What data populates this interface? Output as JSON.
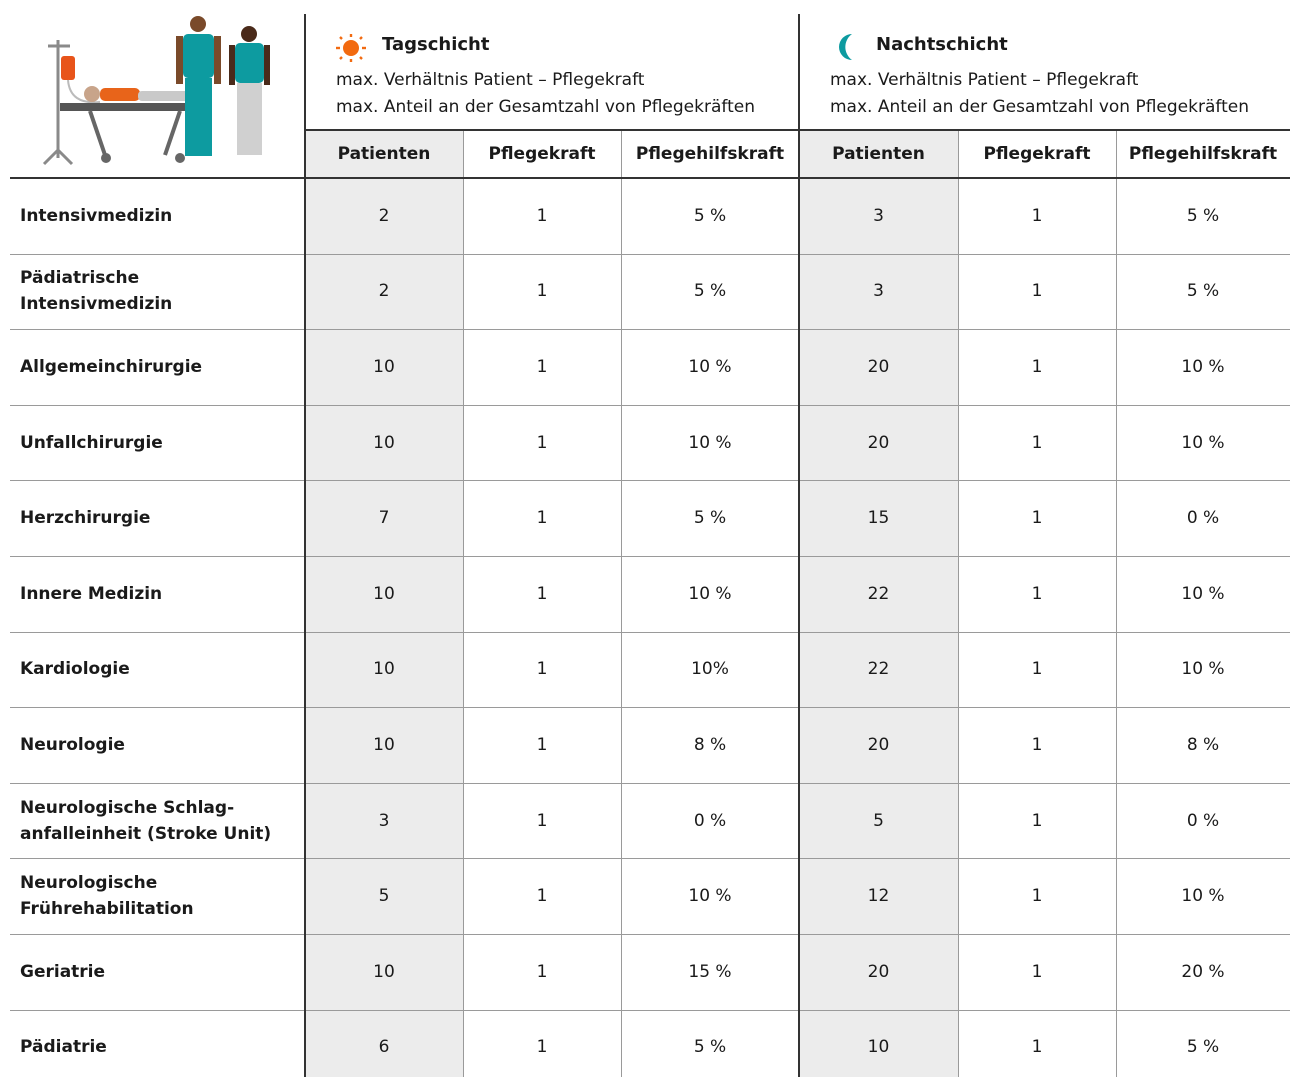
{
  "shifts": [
    {
      "title": "Tagschicht",
      "lines": [
        "max. Verhältnis Patient – Pflegekraft",
        "max. Anteil an der Gesamtzahl von Pflegekräften"
      ],
      "columns": [
        "Patienten",
        "Pflegekraft",
        "Pflegehilfskraft"
      ]
    },
    {
      "title": "Nachtschicht",
      "lines": [
        "max. Verhältnis Patient – Pflegekraft",
        "max. Anteil an der Gesamtzahl von Pflegekräften"
      ],
      "columns": [
        "Patienten",
        "Pflegekraft",
        "Pflegehilfskraft"
      ]
    }
  ],
  "rows": [
    {
      "label": [
        "Intensivmedizin"
      ],
      "cells": [
        "2",
        "1",
        "5 %",
        "3",
        "1",
        "5 %"
      ]
    },
    {
      "label": [
        "Pädiatrische",
        "Intensivmedizin"
      ],
      "cells": [
        "2",
        "1",
        "5 %",
        "3",
        "1",
        "5 %"
      ]
    },
    {
      "label": [
        "Allgemeinchirurgie"
      ],
      "cells": [
        "10",
        "1",
        "10 %",
        "20",
        "1",
        "10 %"
      ]
    },
    {
      "label": [
        "Unfallchirurgie"
      ],
      "cells": [
        "10",
        "1",
        "10 %",
        "20",
        "1",
        "10 %"
      ]
    },
    {
      "label": [
        "Herzchirurgie"
      ],
      "cells": [
        "7",
        "1",
        "5 %",
        "15",
        "1",
        "0 %"
      ]
    },
    {
      "label": [
        "Innere Medizin"
      ],
      "cells": [
        "10",
        "1",
        "10 %",
        "22",
        "1",
        "10 %"
      ]
    },
    {
      "label": [
        "Kardiologie"
      ],
      "cells": [
        "10",
        "1",
        "10%",
        "22",
        "1",
        "10 %"
      ]
    },
    {
      "label": [
        "Neurologie"
      ],
      "cells": [
        "10",
        "1",
        "8 %",
        "20",
        "1",
        "8 %"
      ]
    },
    {
      "label": [
        "Neurologische Schlag-",
        "anfalleinheit (Stroke Unit)"
      ],
      "cells": [
        "3",
        "1",
        "0 %",
        "5",
        "1",
        "0 %"
      ]
    },
    {
      "label": [
        "Neurologische",
        "Frührehabilitation"
      ],
      "cells": [
        "5",
        "1",
        "10 %",
        "12",
        "1",
        "10 %"
      ]
    },
    {
      "label": [
        "Geriatrie"
      ],
      "cells": [
        "10",
        "1",
        "15 %",
        "20",
        "1",
        "20 %"
      ]
    },
    {
      "label": [
        "Pädiatrie"
      ],
      "cells": [
        "6",
        "1",
        "5 %",
        "10",
        "1",
        "5 %"
      ]
    }
  ]
}
